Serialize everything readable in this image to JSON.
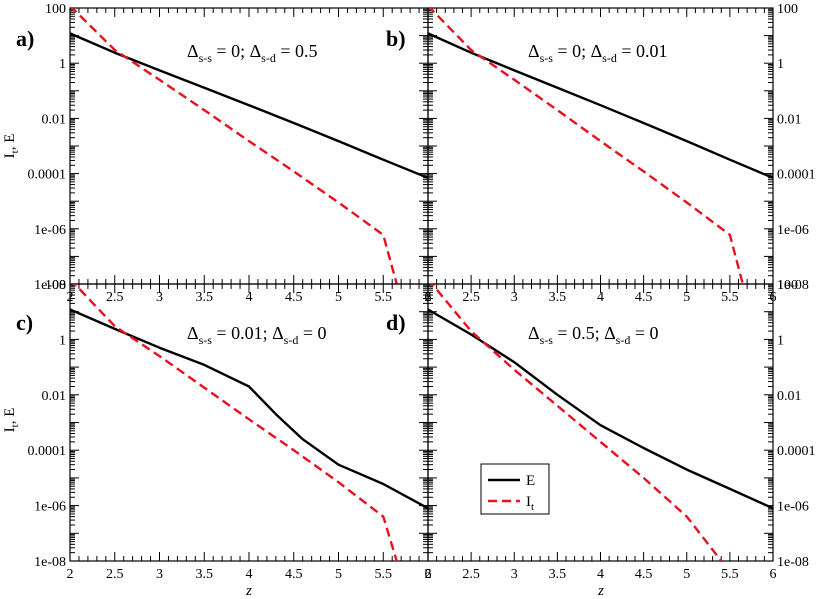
{
  "chart_data": [
    {
      "panel": "a)",
      "type": "line",
      "annotation": {
        "delta_ss": "0",
        "delta_sd": "0.5"
      },
      "x_ticks": [
        "2",
        "2.5",
        "3",
        "3.5",
        "4",
        "4.5",
        "5",
        "5.5",
        "6"
      ],
      "y_scale": "log",
      "ylim": [
        1e-08,
        100
      ],
      "xlim": [
        2,
        6
      ],
      "series": [
        {
          "name": "E",
          "color": "#000000",
          "style": "solid",
          "x": [
            2,
            2.5,
            3,
            3.5,
            4,
            4.5,
            5,
            5.5,
            6
          ],
          "y": [
            12,
            2.4,
            0.55,
            0.13,
            0.03,
            0.0068,
            0.0015,
            0.00032,
            7e-05
          ]
        },
        {
          "name": "I_t",
          "color": "#e8121e",
          "style": "dashed",
          "x": [
            2,
            2.5,
            3,
            3.5,
            4,
            4.5,
            5,
            5.5,
            5.65
          ],
          "y": [
            120,
            3,
            0.25,
            0.02,
            0.0015,
            0.00012,
            9e-06,
            6e-07,
            1e-08
          ]
        }
      ]
    },
    {
      "panel": "b)",
      "type": "line",
      "annotation": {
        "delta_ss": "0",
        "delta_sd": "0.01"
      },
      "x_ticks": [
        "2",
        "2.5",
        "3",
        "3.5",
        "4",
        "4.5",
        "5",
        "5.5",
        "6"
      ],
      "y_scale": "log",
      "ylim": [
        1e-08,
        100
      ],
      "xlim": [
        2,
        6
      ],
      "series": [
        {
          "name": "E",
          "color": "#000000",
          "style": "solid",
          "x": [
            2,
            2.5,
            3,
            3.5,
            4,
            4.5,
            5,
            5.5,
            6
          ],
          "y": [
            12,
            2.4,
            0.55,
            0.13,
            0.03,
            0.0068,
            0.0015,
            0.00032,
            7e-05
          ]
        },
        {
          "name": "I_t",
          "color": "#e8121e",
          "style": "dashed",
          "x": [
            2,
            2.5,
            3,
            3.5,
            4,
            4.5,
            5,
            5.5,
            5.65
          ],
          "y": [
            120,
            3,
            0.25,
            0.02,
            0.0015,
            0.00012,
            9e-06,
            6e-07,
            1e-08
          ]
        }
      ]
    },
    {
      "panel": "c)",
      "type": "line",
      "annotation": {
        "delta_ss": "0.01",
        "delta_sd": "0"
      },
      "x_ticks": [
        "2",
        "2.5",
        "3",
        "3.5",
        "4",
        "4.5",
        "5",
        "5.5",
        "6"
      ],
      "y_scale": "log",
      "ylim": [
        1e-08,
        100
      ],
      "xlim": [
        2,
        6
      ],
      "series": [
        {
          "name": "E",
          "color": "#000000",
          "style": "solid",
          "x": [
            2,
            2.5,
            3,
            3.5,
            4,
            4.3,
            4.6,
            5,
            5.5,
            6
          ],
          "y": [
            12,
            2.4,
            0.5,
            0.12,
            0.02,
            0.002,
            0.00025,
            3e-05,
            6e-06,
            8e-07
          ]
        },
        {
          "name": "I_t",
          "color": "#e8121e",
          "style": "dashed",
          "x": [
            2,
            2.5,
            3,
            3.5,
            4,
            4.5,
            5,
            5.5,
            5.65
          ],
          "y": [
            150,
            3,
            0.25,
            0.018,
            0.0013,
            0.0001,
            7e-06,
            4e-07,
            1e-08
          ]
        }
      ]
    },
    {
      "panel": "d)",
      "type": "line",
      "annotation": {
        "delta_ss": "0.5",
        "delta_sd": "0"
      },
      "x_ticks": [
        "2",
        "2.5",
        "3",
        "3.5",
        "4",
        "4.5",
        "5",
        "5.5",
        "6"
      ],
      "y_scale": "log",
      "ylim": [
        1e-08,
        100
      ],
      "xlim": [
        2,
        6
      ],
      "series": [
        {
          "name": "E",
          "color": "#000000",
          "style": "solid",
          "x": [
            2,
            2.5,
            3,
            3.5,
            4,
            4.5,
            5,
            5.5,
            6
          ],
          "y": [
            12,
            1.5,
            0.15,
            0.01,
            0.0008,
            0.00012,
            2e-05,
            4e-06,
            8e-07
          ]
        },
        {
          "name": "I_t",
          "color": "#e8121e",
          "style": "dashed",
          "x": [
            2,
            2.5,
            3,
            3.5,
            4,
            4.5,
            5,
            5.4
          ],
          "y": [
            150,
            2,
            0.08,
            0.004,
            0.0002,
            1e-05,
            4e-07,
            1e-08
          ]
        }
      ]
    }
  ],
  "y_tick_labels": [
    "100",
    "1",
    "0.01",
    "0.0001",
    "1e-06",
    "1e-08"
  ],
  "y_axis_label": {
    "main": "I",
    "sub": "t",
    "rest": ", E"
  },
  "x_axis_label": "z",
  "delta_symbol": "Δ",
  "sub_ss": "s-s",
  "sub_sd": "s-d",
  "legend": [
    {
      "label": "E",
      "color": "#000000",
      "style": "solid"
    },
    {
      "label": "I",
      "sub": "t",
      "color": "#e8121e",
      "style": "dashed"
    }
  ]
}
